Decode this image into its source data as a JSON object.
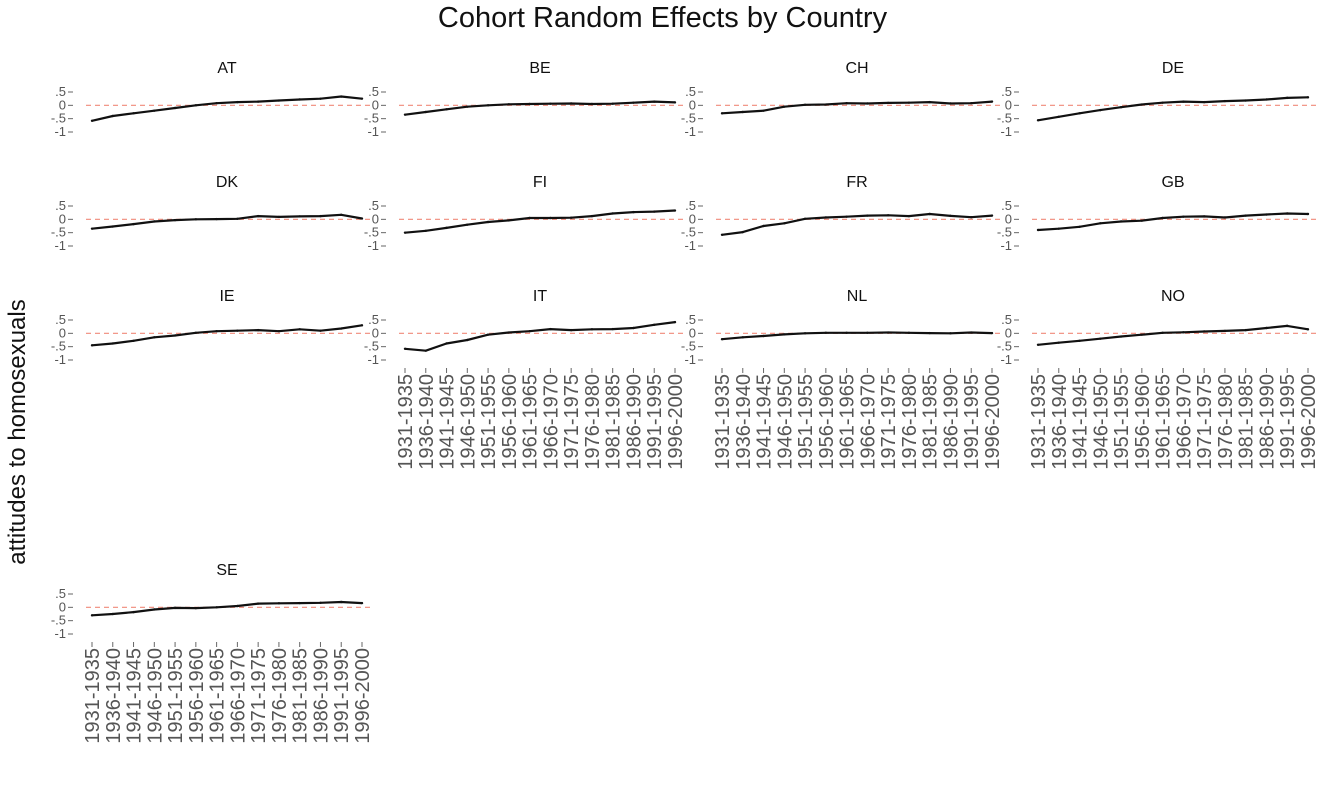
{
  "chart_data": {
    "type": "line",
    "title": "Cohort Random Effects by Country",
    "ylabel": "attitudes to homosexuals",
    "xlabel": "",
    "ylim": [
      -1,
      0.5
    ],
    "yticks": [
      0.5,
      0,
      -0.5,
      -1
    ],
    "ytick_labels": [
      ".5",
      "0",
      "-.5",
      "-1"
    ],
    "reference_line": {
      "y": 0,
      "style": "dashed",
      "color": "#f08a7a"
    },
    "line_color": "#111111",
    "grid": false,
    "categories": [
      "1931-1935",
      "1936-1940",
      "1941-1945",
      "1946-1950",
      "1951-1955",
      "1956-1960",
      "1961-1965",
      "1966-1970",
      "1971-1975",
      "1976-1980",
      "1981-1985",
      "1986-1990",
      "1991-1995",
      "1996-2000"
    ],
    "series": [
      {
        "name": "AT",
        "values": [
          -0.58,
          -0.4,
          -0.3,
          -0.2,
          -0.1,
          0.0,
          0.08,
          0.12,
          0.14,
          0.18,
          0.22,
          0.25,
          0.33,
          0.25
        ]
      },
      {
        "name": "BE",
        "values": [
          -0.35,
          -0.25,
          -0.15,
          -0.05,
          0.0,
          0.04,
          0.05,
          0.06,
          0.07,
          0.05,
          0.06,
          0.1,
          0.14,
          0.11
        ]
      },
      {
        "name": "CH",
        "values": [
          -0.3,
          -0.25,
          -0.2,
          -0.05,
          0.02,
          0.03,
          0.08,
          0.07,
          0.09,
          0.1,
          0.12,
          0.07,
          0.08,
          0.14
        ]
      },
      {
        "name": "DE",
        "values": [
          -0.56,
          -0.43,
          -0.3,
          -0.18,
          -0.07,
          0.03,
          0.1,
          0.14,
          0.12,
          0.16,
          0.18,
          0.22,
          0.28,
          0.3
        ]
      },
      {
        "name": "DK",
        "values": [
          -0.35,
          -0.27,
          -0.18,
          -0.08,
          -0.03,
          0.0,
          0.01,
          0.02,
          0.12,
          0.09,
          0.11,
          0.12,
          0.17,
          0.03
        ]
      },
      {
        "name": "FI",
        "values": [
          -0.5,
          -0.43,
          -0.32,
          -0.2,
          -0.1,
          -0.04,
          0.05,
          0.05,
          0.06,
          0.12,
          0.22,
          0.27,
          0.29,
          0.33
        ]
      },
      {
        "name": "FR",
        "values": [
          -0.58,
          -0.48,
          -0.25,
          -0.15,
          0.02,
          0.07,
          0.1,
          0.14,
          0.15,
          0.12,
          0.2,
          0.13,
          0.08,
          0.14
        ]
      },
      {
        "name": "GB",
        "values": [
          -0.4,
          -0.35,
          -0.28,
          -0.15,
          -0.08,
          -0.05,
          0.05,
          0.1,
          0.11,
          0.07,
          0.14,
          0.18,
          0.22,
          0.2
        ]
      },
      {
        "name": "IE",
        "values": [
          -0.45,
          -0.38,
          -0.28,
          -0.15,
          -0.08,
          0.02,
          0.08,
          0.1,
          0.12,
          0.08,
          0.15,
          0.1,
          0.18,
          0.3
        ]
      },
      {
        "name": "IT",
        "values": [
          -0.58,
          -0.65,
          -0.38,
          -0.25,
          -0.05,
          0.03,
          0.08,
          0.16,
          0.12,
          0.15,
          0.16,
          0.2,
          0.32,
          0.42
        ]
      },
      {
        "name": "NL",
        "values": [
          -0.22,
          -0.15,
          -0.1,
          -0.04,
          0.0,
          0.02,
          0.02,
          0.02,
          0.03,
          0.02,
          0.01,
          0.0,
          0.03,
          0.01
        ]
      },
      {
        "name": "NO",
        "values": [
          -0.43,
          -0.35,
          -0.28,
          -0.2,
          -0.12,
          -0.05,
          0.02,
          0.04,
          0.07,
          0.09,
          0.12,
          0.2,
          0.28,
          0.15
        ]
      },
      {
        "name": "SE",
        "values": [
          -0.3,
          -0.25,
          -0.18,
          -0.08,
          -0.02,
          -0.03,
          0.0,
          0.05,
          0.14,
          0.15,
          0.16,
          0.17,
          0.2,
          0.16
        ]
      }
    ],
    "x_axis_shown_on": [
      "IT",
      "NL",
      "NO",
      "SE"
    ]
  }
}
